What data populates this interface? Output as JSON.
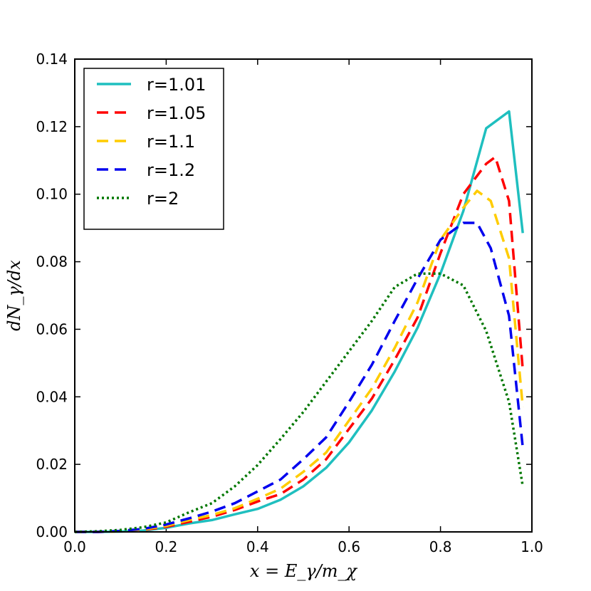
{
  "chart_data": {
    "type": "line",
    "title": "",
    "xlabel": "x = E_γ/m_χ",
    "ylabel": "dN_γ/dx",
    "xlim": [
      0.0,
      1.0
    ],
    "ylim": [
      0.0,
      0.14
    ],
    "xticks": [
      "0.0",
      "0.2",
      "0.4",
      "0.6",
      "0.8",
      "1.0"
    ],
    "yticks": [
      "0.00",
      "0.02",
      "0.04",
      "0.06",
      "0.08",
      "0.10",
      "0.12",
      "0.14"
    ],
    "legend_position": "top-left",
    "series": [
      {
        "name": "r=1.01",
        "color": "#1fbfbf",
        "style": "solid",
        "x": [
          0.0,
          0.05,
          0.1,
          0.15,
          0.2,
          0.25,
          0.3,
          0.35,
          0.4,
          0.45,
          0.5,
          0.55,
          0.6,
          0.65,
          0.7,
          0.75,
          0.8,
          0.85,
          0.9,
          0.95,
          0.98
        ],
        "y": [
          0.0,
          0.0,
          0.0001,
          0.0004,
          0.0012,
          0.0025,
          0.0035,
          0.0052,
          0.0068,
          0.0095,
          0.0135,
          0.019,
          0.0265,
          0.036,
          0.0475,
          0.0605,
          0.0765,
          0.095,
          0.1195,
          0.1245,
          0.0885
        ]
      },
      {
        "name": "r=1.05",
        "color": "#ff0000",
        "style": "dashed",
        "x": [
          0.0,
          0.05,
          0.1,
          0.15,
          0.2,
          0.25,
          0.3,
          0.35,
          0.4,
          0.45,
          0.5,
          0.55,
          0.6,
          0.65,
          0.7,
          0.75,
          0.8,
          0.85,
          0.9,
          0.92,
          0.95,
          0.98
        ],
        "y": [
          0.0,
          0.0,
          0.0002,
          0.0006,
          0.0015,
          0.003,
          0.0045,
          0.0065,
          0.009,
          0.0112,
          0.0155,
          0.0215,
          0.0305,
          0.0395,
          0.051,
          0.0635,
          0.0825,
          0.1,
          0.109,
          0.111,
          0.098,
          0.048
        ]
      },
      {
        "name": "r=1.1",
        "color": "#ffcc00",
        "style": "dashed",
        "x": [
          0.0,
          0.05,
          0.1,
          0.15,
          0.2,
          0.25,
          0.3,
          0.35,
          0.4,
          0.45,
          0.5,
          0.55,
          0.6,
          0.65,
          0.7,
          0.75,
          0.8,
          0.85,
          0.88,
          0.91,
          0.95,
          0.98
        ],
        "y": [
          0.0,
          0.0,
          0.0002,
          0.0007,
          0.0018,
          0.0035,
          0.005,
          0.007,
          0.0098,
          0.0128,
          0.0178,
          0.0235,
          0.033,
          0.0425,
          0.0545,
          0.068,
          0.0865,
          0.096,
          0.101,
          0.098,
          0.081,
          0.037
        ]
      },
      {
        "name": "r=1.2",
        "color": "#0000ee",
        "style": "dashed",
        "x": [
          0.0,
          0.05,
          0.1,
          0.15,
          0.2,
          0.25,
          0.3,
          0.35,
          0.4,
          0.45,
          0.5,
          0.55,
          0.6,
          0.65,
          0.7,
          0.75,
          0.8,
          0.85,
          0.88,
          0.91,
          0.95,
          0.98
        ],
        "y": [
          0.0,
          0.0,
          0.0003,
          0.0009,
          0.0022,
          0.004,
          0.006,
          0.0085,
          0.012,
          0.0155,
          0.0215,
          0.028,
          0.0385,
          0.0495,
          0.0625,
          0.075,
          0.0865,
          0.0915,
          0.0915,
          0.084,
          0.064,
          0.025
        ]
      },
      {
        "name": "r=2",
        "color": "#007700",
        "style": "dotted",
        "x": [
          0.0,
          0.05,
          0.1,
          0.15,
          0.2,
          0.25,
          0.3,
          0.35,
          0.4,
          0.45,
          0.5,
          0.55,
          0.6,
          0.65,
          0.7,
          0.75,
          0.8,
          0.85,
          0.9,
          0.95,
          0.98
        ],
        "y": [
          0.0,
          0.0002,
          0.0006,
          0.0014,
          0.0028,
          0.0058,
          0.0085,
          0.0135,
          0.0198,
          0.0275,
          0.0355,
          0.0445,
          0.0535,
          0.0625,
          0.0725,
          0.0765,
          0.0765,
          0.073,
          0.0595,
          0.0385,
          0.0135
        ]
      }
    ]
  }
}
